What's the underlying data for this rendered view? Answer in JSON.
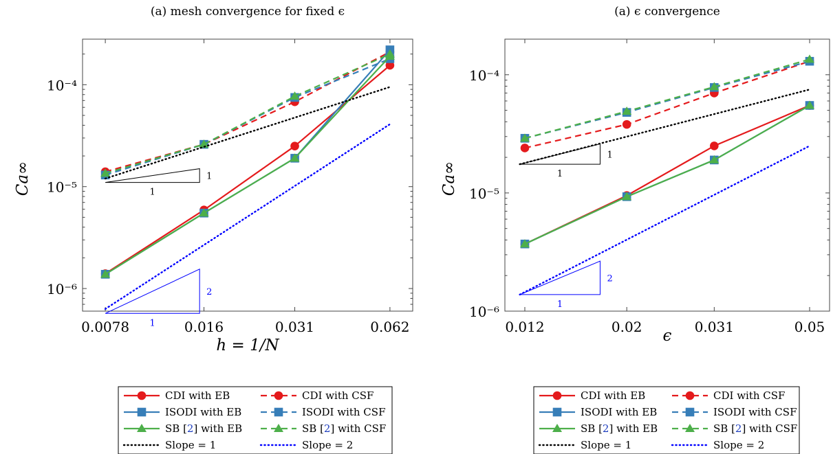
{
  "colors": {
    "cdi": "#e41a1c",
    "isodi": "#377eb8",
    "sb": "#4daf4a",
    "slope1": "#000000",
    "slope2": "#0000ff"
  },
  "legend": {
    "cdi_eb": "CDI with EB",
    "cdi_csf": "CDI with CSF",
    "isodi_eb": "ISODI with EB",
    "isodi_csf": "ISODI with CSF",
    "sb_eb_pre": "SB [",
    "sb_ref": "2",
    "sb_eb_post": "] with EB",
    "sb_csf_post": "] with CSF",
    "slope1": "Slope = 1",
    "slope2": "Slope = 2"
  },
  "chart_data": [
    {
      "type": "line",
      "title": "(a) mesh convergence for fixed ϵ",
      "xlabel": "h = 1/N",
      "ylabel": "Ca∞",
      "yscale": "log",
      "xscale": "log",
      "x": [
        0.0078,
        0.016,
        0.031,
        0.062
      ],
      "xticks": [
        "0.0078",
        "0.016",
        "0.031",
        "0.062"
      ],
      "yticks": [
        "10⁻⁶",
        "10⁻⁵",
        "10⁻⁴"
      ],
      "ylim": [
        6e-07,
        0.00028
      ],
      "series": [
        {
          "name": "CDI with EB",
          "key": "cdi",
          "dash": false,
          "marker": "circle",
          "values": [
            1.4e-06,
            5.9e-06,
            2.5e-05,
            0.000155
          ]
        },
        {
          "name": "CDI with CSF",
          "key": "cdi",
          "dash": true,
          "marker": "circle",
          "values": [
            1.4e-05,
            2.6e-05,
            6.8e-05,
            0.00021
          ]
        },
        {
          "name": "ISODI with EB",
          "key": "isodi",
          "dash": false,
          "marker": "square",
          "values": [
            1.38e-06,
            5.5e-06,
            1.9e-05,
            0.00022
          ]
        },
        {
          "name": "ISODI with CSF",
          "key": "isodi",
          "dash": true,
          "marker": "square",
          "values": [
            1.3e-05,
            2.6e-05,
            7.5e-05,
            0.00018
          ]
        },
        {
          "name": "SB [2] with EB",
          "key": "sb",
          "dash": false,
          "marker": "triangle",
          "values": [
            1.38e-06,
            5.5e-06,
            1.9e-05,
            0.00019
          ]
        },
        {
          "name": "SB [2] with CSF",
          "key": "sb",
          "dash": true,
          "marker": "triangle",
          "values": [
            1.35e-05,
            2.6e-05,
            7.7e-05,
            0.0002
          ]
        },
        {
          "name": "Slope = 1",
          "key": "slope1",
          "dotted": true,
          "x": [
            0.0078,
            0.062
          ],
          "values": [
            1.2e-05,
            9.5e-05
          ]
        },
        {
          "name": "Slope = 2",
          "key": "slope2",
          "dotted": true,
          "x": [
            0.0078,
            0.062
          ],
          "values": [
            6.3e-07,
            4.1e-05
          ]
        }
      ],
      "triangles": [
        {
          "key": "slope1",
          "x": [
            0.0078,
            0.0155
          ],
          "y_base": 1.1e-05,
          "y_top": 1.5e-05,
          "vlabel": "1",
          "hlabel": "1"
        },
        {
          "key": "slope2",
          "x": [
            0.0078,
            0.0155
          ],
          "y_base": 5.7e-07,
          "y_top": 1.55e-06,
          "vlabel": "2",
          "hlabel": "1"
        }
      ]
    },
    {
      "type": "line",
      "title": "(a) ϵ convergence",
      "xlabel": "ϵ",
      "ylabel": "Ca∞",
      "yscale": "log",
      "xscale": "log",
      "x": [
        0.012,
        0.02,
        0.031,
        0.05
      ],
      "xticks": [
        "0.012",
        "0.02",
        "0.031",
        "0.05"
      ],
      "yticks": [
        "10⁻⁶",
        "10⁻⁵",
        "10⁻⁴"
      ],
      "ylim": [
        1e-06,
        0.0002
      ],
      "series": [
        {
          "name": "CDI with EB",
          "key": "cdi",
          "dash": false,
          "marker": "circle",
          "values": [
            3.7e-06,
            9.5e-06,
            2.5e-05,
            5.5e-05
          ]
        },
        {
          "name": "CDI with CSF",
          "key": "cdi",
          "dash": true,
          "marker": "circle",
          "values": [
            2.4e-05,
            3.8e-05,
            7e-05,
            0.00013
          ]
        },
        {
          "name": "ISODI with EB",
          "key": "isodi",
          "dash": false,
          "marker": "square",
          "values": [
            3.7e-06,
            9.3e-06,
            1.9e-05,
            5.5e-05
          ]
        },
        {
          "name": "ISODI with CSF",
          "key": "isodi",
          "dash": true,
          "marker": "square",
          "values": [
            2.9e-05,
            4.8e-05,
            7.8e-05,
            0.00013
          ]
        },
        {
          "name": "SB [2] with EB",
          "key": "sb",
          "dash": false,
          "marker": "triangle",
          "values": [
            3.7e-06,
            9.3e-06,
            1.9e-05,
            5.5e-05
          ]
        },
        {
          "name": "SB [2] with CSF",
          "key": "sb",
          "dash": true,
          "marker": "triangle",
          "values": [
            2.9e-05,
            4.9e-05,
            7.9e-05,
            0.000135
          ]
        },
        {
          "name": "Slope = 1",
          "key": "slope1",
          "dotted": true,
          "x": [
            0.0117,
            0.05
          ],
          "values": [
            1.75e-05,
            7.5e-05
          ]
        },
        {
          "name": "Slope = 2",
          "key": "slope2",
          "dotted": true,
          "x": [
            0.0117,
            0.05
          ],
          "values": [
            1.38e-06,
            2.5e-05
          ]
        }
      ],
      "triangles": [
        {
          "key": "slope1",
          "x": [
            0.0117,
            0.0175
          ],
          "y_base": 1.75e-05,
          "y_top": 2.6e-05,
          "vlabel": "1",
          "hlabel": "1"
        },
        {
          "key": "slope2",
          "x": [
            0.0117,
            0.0175
          ],
          "y_base": 1.38e-06,
          "y_top": 2.65e-06,
          "vlabel": "2",
          "hlabel": "1"
        }
      ]
    }
  ]
}
